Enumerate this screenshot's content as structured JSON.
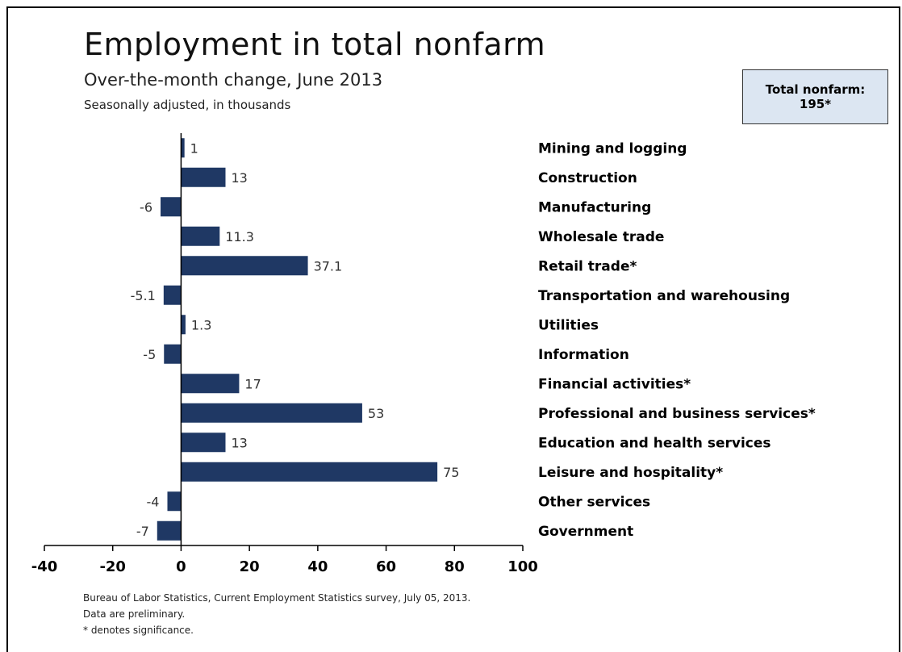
{
  "header": {
    "title": "Employment in total nonfarm",
    "subtitle": "Over-the-month change, June 2013",
    "note": "Seasonally adjusted, in thousands"
  },
  "summary": {
    "label": "Total nonfarm:",
    "value": "195*"
  },
  "source": {
    "line1": "Bureau of Labor Statistics, Current Employment Statistics survey, July 05, 2013.",
    "line2": "Data are preliminary.",
    "line3": "* denotes significance."
  },
  "colors": {
    "bar": "#1f3864",
    "summary_box": "#dce6f2"
  },
  "chart_data": {
    "type": "bar",
    "orientation": "horizontal",
    "categories": [
      "Mining and logging",
      "Construction",
      "Manufacturing",
      "Wholesale trade",
      "Retail trade*",
      "Transportation and warehousing",
      "Utilities",
      "Information",
      "Financial activities*",
      "Professional and business services*",
      "Education and health services",
      "Leisure and hospitality*",
      "Other services",
      "Government"
    ],
    "values": [
      1,
      13,
      -6,
      11.3,
      37.1,
      -5.1,
      1.3,
      -5,
      17,
      53,
      13,
      75,
      -4,
      -7
    ],
    "value_labels": [
      "1",
      "13",
      "-6",
      "11.3",
      "37.1",
      "-5.1",
      "1.3",
      "-5",
      "17",
      "53",
      "13",
      "75",
      "-4",
      "-7"
    ],
    "xlim": [
      -40,
      100
    ],
    "xticks": [
      "-40",
      "-20",
      "0",
      "20",
      "40",
      "60",
      "80",
      "100"
    ],
    "xlabel": "",
    "ylabel": "",
    "grid": false,
    "legend": "none"
  }
}
